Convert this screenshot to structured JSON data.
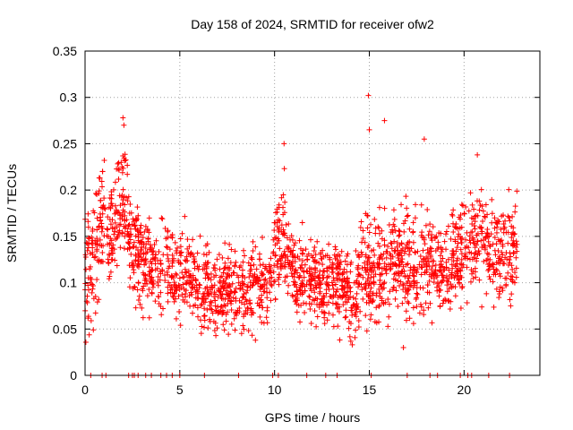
{
  "chart_data": {
    "type": "scatter",
    "title": "Day 158 of 2024, SRMTID for receiver ofw2",
    "xlabel": "GPS time / hours",
    "ylabel": "SRMTID / TECUs",
    "xlim": [
      0,
      24
    ],
    "ylim": [
      0,
      0.35
    ],
    "xticks": [
      0,
      5,
      10,
      15,
      20
    ],
    "xtick_labels": [
      "0",
      "5",
      "10",
      "15",
      "20"
    ],
    "yticks": [
      0,
      0.05,
      0.1,
      0.15,
      0.2,
      0.25,
      0.3,
      0.35
    ],
    "ytick_labels": [
      "0",
      "0.05",
      "0.1",
      "0.15",
      "0.2",
      "0.25",
      "0.3",
      "0.35"
    ],
    "grid": true,
    "marker": "+",
    "series_color": "#ff0000",
    "envelope": {
      "hours": [
        0,
        0.5,
        1,
        1.5,
        2,
        2.5,
        3,
        4,
        5,
        6,
        7,
        8,
        9,
        9.5,
        10,
        10.5,
        11,
        12,
        13,
        14,
        15,
        15.5,
        16,
        17,
        18,
        19,
        20,
        21,
        22,
        22.8
      ],
      "median": [
        0.11,
        0.13,
        0.18,
        0.15,
        0.2,
        0.14,
        0.12,
        0.12,
        0.11,
        0.1,
        0.09,
        0.09,
        0.1,
        0.09,
        0.14,
        0.15,
        0.11,
        0.1,
        0.1,
        0.09,
        0.11,
        0.12,
        0.12,
        0.12,
        0.12,
        0.11,
        0.14,
        0.14,
        0.13,
        0.14
      ],
      "spread": [
        0.06,
        0.06,
        0.05,
        0.06,
        0.05,
        0.05,
        0.04,
        0.04,
        0.04,
        0.04,
        0.04,
        0.04,
        0.04,
        0.04,
        0.05,
        0.05,
        0.04,
        0.04,
        0.04,
        0.04,
        0.06,
        0.05,
        0.05,
        0.05,
        0.05,
        0.04,
        0.05,
        0.05,
        0.05,
        0.05
      ]
    },
    "notable_points": [
      {
        "x": 2.0,
        "y": 0.278
      },
      {
        "x": 2.05,
        "y": 0.27
      },
      {
        "x": 14.95,
        "y": 0.302
      },
      {
        "x": 15.0,
        "y": 0.265
      },
      {
        "x": 15.8,
        "y": 0.275
      },
      {
        "x": 17.9,
        "y": 0.255
      },
      {
        "x": 10.5,
        "y": 0.25
      },
      {
        "x": 20.7,
        "y": 0.238
      },
      {
        "x": 16.8,
        "y": 0.03
      },
      {
        "x": 14.1,
        "y": 0.033
      }
    ],
    "zero_points_hours": [
      0.3,
      0.9,
      1.1,
      2.3,
      2.5,
      2.6,
      2.8,
      3.2,
      3.5,
      4.0,
      4.3,
      4.6,
      5.0,
      6.3,
      8.1,
      9.9,
      10.2,
      11.7,
      12.7,
      13.3,
      15.1,
      17.0,
      18.2,
      18.6,
      19.8,
      20.2,
      20.4,
      21.3,
      22.4
    ]
  }
}
